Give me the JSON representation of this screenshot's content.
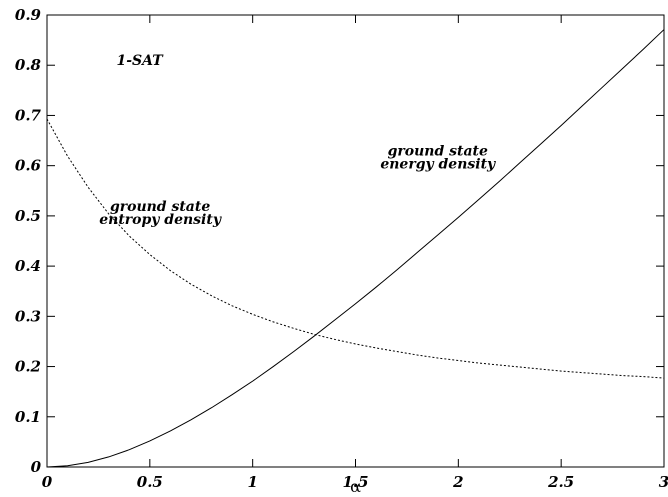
{
  "chart_data": {
    "type": "line",
    "title": "",
    "xlabel": "α",
    "ylabel": "",
    "xlim": [
      0,
      3
    ],
    "ylim": [
      0,
      0.9
    ],
    "grid": false,
    "legend": "none",
    "x_ticks": [
      0,
      0.5,
      1,
      1.5,
      2,
      2.5,
      3
    ],
    "x_tick_labels": [
      "0",
      "0.5",
      "1",
      "1.5",
      "2",
      "2.5",
      "3"
    ],
    "y_ticks": [
      0,
      0.1,
      0.2,
      0.3,
      0.4,
      0.5,
      0.6,
      0.7,
      0.8,
      0.9
    ],
    "y_tick_labels": [
      "0",
      "0.1",
      "0.2",
      "0.3",
      "0.4",
      "0.5",
      "0.6",
      "0.7",
      "0.8",
      "0.9"
    ],
    "annotations": [
      {
        "text": "1-SAT",
        "x": 0.45,
        "y": 0.8
      },
      {
        "lines": [
          "ground state",
          "entropy density"
        ],
        "x": 0.55,
        "y": 0.51
      },
      {
        "lines": [
          "ground state",
          "energy density"
        ],
        "x": 1.9,
        "y": 0.62
      }
    ],
    "series": [
      {
        "style": "solid",
        "x": [
          0,
          0.1,
          0.2,
          0.3,
          0.4,
          0.5,
          0.6,
          0.7,
          0.8,
          0.9,
          1.0,
          1.1,
          1.2,
          1.3,
          1.4,
          1.5,
          1.6,
          1.7,
          1.8,
          1.9,
          2.0,
          2.1,
          2.2,
          2.3,
          2.4,
          2.5,
          2.6,
          2.7,
          2.8,
          2.9,
          3.0
        ],
        "y": [
          0,
          0.0024,
          0.00925,
          0.0201,
          0.0344,
          0.0518,
          0.0718,
          0.094,
          0.118,
          0.144,
          0.171,
          0.2,
          0.23,
          0.261,
          0.293,
          0.325,
          0.358,
          0.392,
          0.427,
          0.462,
          0.497,
          0.533,
          0.569,
          0.606,
          0.643,
          0.68,
          0.718,
          0.756,
          0.794,
          0.832,
          0.871
        ]
      },
      {
        "style": "dotted",
        "x": [
          0,
          0.1,
          0.2,
          0.3,
          0.4,
          0.5,
          0.6,
          0.7,
          0.8,
          0.9,
          1.0,
          1.1,
          1.2,
          1.3,
          1.4,
          1.5,
          1.6,
          1.7,
          1.8,
          1.9,
          2.0,
          2.1,
          2.2,
          2.3,
          2.4,
          2.5,
          2.6,
          2.7,
          2.8,
          2.9,
          3.0
        ],
        "y": [
          0.693,
          0.619,
          0.557,
          0.504,
          0.46,
          0.423,
          0.391,
          0.364,
          0.341,
          0.321,
          0.304,
          0.289,
          0.276,
          0.264,
          0.254,
          0.245,
          0.237,
          0.23,
          0.223,
          0.217,
          0.212,
          0.207,
          0.203,
          0.199,
          0.195,
          0.191,
          0.188,
          0.185,
          0.182,
          0.18,
          0.177
        ]
      }
    ]
  }
}
